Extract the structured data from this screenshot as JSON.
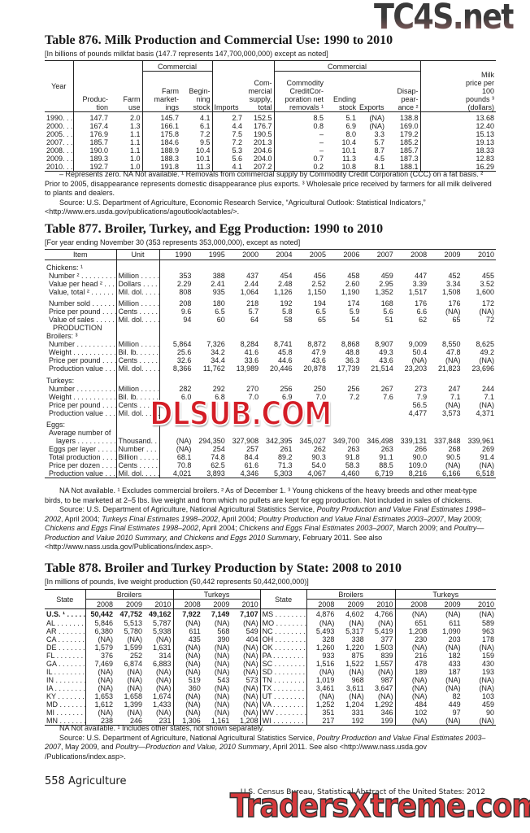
{
  "t876": {
    "title": "Table 876. Milk Production and Commercial Use: 1990 to 2010",
    "subtitle": "[In billions of pounds milkfat basis (147.7 represents 147,700,000,000) except as noted]",
    "headers": {
      "commercial1": "Commercial",
      "commercial2": "Commercial",
      "year": "Year",
      "production": "Produc-\ntion",
      "farm_use": "Farm\nuse",
      "farm_marketings": "Farm\nmarket-\nings",
      "beginning_stock": "Begin-\nning\nstock",
      "imports": "Imports",
      "supply": "Com-\nmercial\nsupply,\ntotal",
      "ccc": "Commodity\nCreditCor-\nporation net\nremovals ¹",
      "ending_stock": "Ending\nstock",
      "exports": "Exports",
      "disappearance": "Disap-\npear-\nance ²",
      "milk_price": "Milk\nprice per\n100\npounds ³\n(dollars)"
    },
    "rows": [
      [
        "1990. . .",
        "147.7",
        "2.0",
        "145.7",
        "4.1",
        "2.7",
        "152.5",
        "8.5",
        "5.1",
        "(NA)",
        "138.8",
        "13.68"
      ],
      [
        "2000. . .",
        "167.4",
        "1.3",
        "166.1",
        "6.1",
        "4.4",
        "176.7",
        "0.8",
        "6.9",
        "(NA)",
        "169.0",
        "12.40"
      ],
      [
        "2005. . .",
        "176.9",
        "1.1",
        "175.8",
        "7.2",
        "7.5",
        "190.5",
        "–",
        "8.0",
        "3.3",
        "179.2",
        "15.13"
      ],
      [
        "2007. . .",
        "185.7",
        "1.1",
        "184.6",
        "9.5",
        "7.2",
        "201.3",
        "–",
        "10.4",
        "5.7",
        "185.2",
        "19.13"
      ],
      [
        "2008. . .",
        "190.0",
        "1.1",
        "188.9",
        "10.4",
        "5.3",
        "204.6",
        "–",
        "10.1",
        "8.7",
        "185.7",
        "18.33"
      ],
      [
        "2009. . .",
        "189.3",
        "1.0",
        "188.3",
        "10.1",
        "5.6",
        "204.0",
        "0.7",
        "11.3",
        "4.5",
        "187.3",
        "12.83"
      ],
      [
        "2010. . .",
        "192.7",
        "1.0",
        "191.8",
        "11.3",
        "4.1",
        "207.2",
        "0.2",
        "10.8",
        "8.1",
        "188.1",
        "16.29"
      ]
    ],
    "notes": [
      [
        {
          "t": "– Represents zero. NA Not available. ¹ Removals from commercial supply by Commodity Credit Corporation (CCC) on a fat basis. ² Prior to 2005, disappearance represents domestic disappearance plus exports. ³ Wholesale price received by farmers for all milk delivered to plants and dealers."
        }
      ],
      [
        {
          "t": "Source: U.S. Department of Agriculture, Economic Research Service, “Agricultural Outlook: Statistical Indicators,” <http://www.ers.usda.gov/publications/agoutlook/aotables/>."
        }
      ]
    ]
  },
  "t877": {
    "title": "Table 877. Broiler, Turkey, and Egg Production: 1990 to 2010",
    "subtitle": "[For year ending November 30 (353 represents 353,000,000), except as noted]",
    "headers": {
      "item": "Item",
      "unit": "Unit",
      "years": [
        "1990",
        "1995",
        "2000",
        "2004",
        "2005",
        "2006",
        "2007",
        "2008",
        "2009",
        "2010"
      ]
    },
    "rows": [
      {
        "item": "Chickens: ¹",
        "kind": "head"
      },
      {
        "item": "Number ²",
        "unit": "Million",
        "v": [
          "353",
          "388",
          "437",
          "454",
          "456",
          "458",
          "459",
          "447",
          "452",
          "455"
        ]
      },
      {
        "item": "Value per head ²",
        "unit": "Dollars",
        "v": [
          "2.29",
          "2.41",
          "2.44",
          "2.48",
          "2.52",
          "2.60",
          "2.95",
          "3.39",
          "3.34",
          "3.52"
        ]
      },
      {
        "item": "Value, total ²",
        "unit": "Mil. dol.",
        "v": [
          "808",
          "935",
          "1,064",
          "1,126",
          "1,150",
          "1,190",
          "1,352",
          "1,517",
          "1,508",
          "1,600"
        ]
      },
      {
        "item": "Number sold",
        "unit": "Million",
        "gap": true,
        "v": [
          "208",
          "180",
          "218",
          "192",
          "194",
          "174",
          "168",
          "176",
          "176",
          "172"
        ]
      },
      {
        "item": "Price per pound",
        "unit": "Cents",
        "v": [
          "9.6",
          "6.5",
          "5.7",
          "5.8",
          "6.5",
          "5.9",
          "5.6",
          "6.6",
          "(NA)",
          "(NA)"
        ]
      },
      {
        "item": "Value of sales",
        "unit": "Mil. dol.",
        "v": [
          "94",
          "60",
          "64",
          "58",
          "65",
          "54",
          "51",
          "62",
          "65",
          "72"
        ]
      },
      {
        "item": "PRODUCTION",
        "kind": "sec"
      },
      {
        "item": "Broilers: ³",
        "kind": "head"
      },
      {
        "item": "Number",
        "unit": "Million",
        "v": [
          "5,864",
          "7,326",
          "8,284",
          "8,741",
          "8,872",
          "8,868",
          "8,907",
          "9,009",
          "8,550",
          "8,625"
        ]
      },
      {
        "item": "Weight",
        "unit": "Bil. lb.",
        "v": [
          "25.6",
          "34.2",
          "41.6",
          "45.8",
          "47.9",
          "48.8",
          "49.3",
          "50.4",
          "47.8",
          "49.2"
        ]
      },
      {
        "item": "Price per pound",
        "unit": "Cents",
        "v": [
          "32.6",
          "34.4",
          "33.6",
          "44.6",
          "43.6",
          "36.3",
          "43.6",
          "(NA)",
          "(NA)",
          "(NA)"
        ]
      },
      {
        "item": "Production value",
        "unit": "Mil. dol.",
        "v": [
          "8,366",
          "11,762",
          "13,989",
          "20,446",
          "20,878",
          "17,739",
          "21,514",
          "23,203",
          "21,823",
          "23,696"
        ]
      },
      {
        "item": "Turkeys:",
        "kind": "head",
        "gap": true
      },
      {
        "item": "Number",
        "unit": "Million",
        "v": [
          "282",
          "292",
          "270",
          "256",
          "250",
          "256",
          "267",
          "273",
          "247",
          "244"
        ]
      },
      {
        "item": "Weight",
        "unit": "Bil. lb.",
        "v": [
          "6.0",
          "6.8",
          "7.0",
          "6.9",
          "7.0",
          "7.2",
          "7.6",
          "7.9",
          "7.1",
          "7.1"
        ]
      },
      {
        "item": "Price per pound",
        "unit": "Cents",
        "v": [
          "",
          "",
          "",
          "",
          "",
          "",
          "",
          "56.5",
          "(NA)",
          "(NA)"
        ]
      },
      {
        "item": "Production value",
        "unit": "Mil. dol.",
        "v": [
          "",
          "",
          "",
          "",
          "",
          "",
          "",
          "4,477",
          "3,573",
          "4,371"
        ]
      },
      {
        "item": "Eggs:",
        "kind": "head",
        "gap": true
      },
      {
        "item": "Average number of",
        "kind": "head2"
      },
      {
        "item": "layers",
        "unit": "Thousand.",
        "indent": true,
        "v": [
          "(NA)",
          "294,350",
          "327,908",
          "342,395",
          "345,027",
          "349,700",
          "346,498",
          "339,131",
          "337,848",
          "339,961"
        ]
      },
      {
        "item": "Eggs per layer",
        "unit": "Number",
        "v": [
          "(NA)",
          "254",
          "257",
          "261",
          "262",
          "263",
          "263",
          "266",
          "268",
          "269"
        ]
      },
      {
        "item": "Total production",
        "unit": "Billion",
        "v": [
          "68.1",
          "74.8",
          "84.4",
          "89.2",
          "90.3",
          "91.8",
          "91.1",
          "90.0",
          "90.5",
          "91.4"
        ]
      },
      {
        "item": "Price per dozen",
        "unit": "Cents",
        "v": [
          "70.8",
          "62.5",
          "61.6",
          "71.3",
          "54.0",
          "58.3",
          "88.5",
          "109.0",
          "(NA)",
          "(NA)"
        ]
      },
      {
        "item": "Production value",
        "unit": "Mil. dol.",
        "v": [
          "4,021",
          "3,893",
          "4,346",
          "5,303",
          "4,067",
          "4,460",
          "6,719",
          "8,216",
          "6,166",
          "6,518"
        ]
      }
    ],
    "notes": [
      [
        {
          "t": "NA Not available. ¹ Excludes commercial broilers. ² As of December 1. ³ Young chickens of the heavy breeds and other meat-type birds, to be marketed at 2–5 lbs. live weight and from which no pullets are kept for egg production. Not included in sales of chickens."
        }
      ],
      [
        {
          "t": "Source: U.S. Department of Agriculture, National Agricultural Statistics Service, "
        },
        {
          "t": "Poultry Production and Value Final Estimates 1998–2002",
          "i": true
        },
        {
          "t": ", April 2004; "
        },
        {
          "t": "Turkeys Final Estimates 1998–2002",
          "i": true
        },
        {
          "t": ", April 2004; "
        },
        {
          "t": "Poultry Production and Value Final Estimates 2003–2007",
          "i": true
        },
        {
          "t": ", May 2009; "
        },
        {
          "t": "Chickens and Eggs Final Estimates 1998–2002",
          "i": true
        },
        {
          "t": ", April 2004; "
        },
        {
          "t": "Chickens and Eggs Final Estimates 2003–2007",
          "i": true
        },
        {
          "t": ", March 2009; and "
        },
        {
          "t": "Poultry—Production and Value 2010 Summary, and Chickens and Eggs 2010 Summary",
          "i": true
        },
        {
          "t": ", February 2011. See also <http://www.nass.usda.gov/Publications/index.asp>."
        }
      ]
    ]
  },
  "t878": {
    "title": "Table 878. Broiler and Turkey Production by State: 2008 to 2010",
    "subtitle": "[In millions of pounds, live weight production (50,442 represents 50,442,000,000)]",
    "headers": {
      "state": "State",
      "broilers": "Broilers",
      "turkeys": "Turkeys",
      "years": [
        "2008",
        "2009",
        "2010"
      ]
    },
    "left": [
      [
        "U.S. ¹",
        "50,442",
        "47,752",
        "49,162",
        "7,922",
        "7,149",
        "7,107"
      ],
      [
        "AL",
        "5,846",
        "5,513",
        "5,787",
        "(NA)",
        "(NA)",
        "(NA)"
      ],
      [
        "AR",
        "6,380",
        "5,780",
        "5,938",
        "611",
        "568",
        "549"
      ],
      [
        "CA",
        "(NA)",
        "(NA)",
        "(NA)",
        "435",
        "390",
        "404"
      ],
      [
        "DE",
        "1,579",
        "1,599",
        "1,631",
        "(NA)",
        "(NA)",
        "(NA)"
      ],
      [
        "FL",
        "376",
        "252",
        "314",
        "(NA)",
        "(NA)",
        "(NA)"
      ],
      [
        "GA",
        "7,469",
        "6,874",
        "6,883",
        "(NA)",
        "(NA)",
        "(NA)"
      ],
      [
        "IL",
        "(NA)",
        "(NA)",
        "(NA)",
        "(NA)",
        "(NA)",
        "(NA)"
      ],
      [
        "IN",
        "(NA)",
        "(NA)",
        "(NA)",
        "519",
        "543",
        "573"
      ],
      [
        "IA",
        "(NA)",
        "(NA)",
        "(NA)",
        "360",
        "(NA)",
        "(NA)"
      ],
      [
        "KY",
        "1,653",
        "1,658",
        "1,674",
        "(NA)",
        "(NA)",
        "(NA)"
      ],
      [
        "MD",
        "1,612",
        "1,399",
        "1,433",
        "(NA)",
        "(NA)",
        "(NA)"
      ],
      [
        "MI",
        "(NA)",
        "(NA)",
        "(NA)",
        "(NA)",
        "(NA)",
        "(NA)"
      ],
      [
        "MN",
        "238",
        "246",
        "231",
        "1,306",
        "1,161",
        "1,208"
      ]
    ],
    "right": [
      [
        "MS",
        "4,876",
        "4,602",
        "4,766",
        "(NA)",
        "(NA)",
        "(NA)"
      ],
      [
        "MO",
        "(NA)",
        "(NA)",
        "(NA)",
        "651",
        "611",
        "589"
      ],
      [
        "NC",
        "5,493",
        "5,317",
        "5,419",
        "1,208",
        "1,090",
        "963"
      ],
      [
        "OH",
        "328",
        "338",
        "377",
        "230",
        "203",
        "178"
      ],
      [
        "OK",
        "1,260",
        "1,220",
        "1,503",
        "(NA)",
        "(NA)",
        "(NA)"
      ],
      [
        "PA",
        "933",
        "875",
        "839",
        "216",
        "182",
        "159"
      ],
      [
        "SC",
        "1,516",
        "1,522",
        "1,557",
        "478",
        "433",
        "430"
      ],
      [
        "SD",
        "(NA)",
        "(NA)",
        "(NA)",
        "189",
        "187",
        "193"
      ],
      [
        "TN",
        "1,019",
        "968",
        "987",
        "(NA)",
        "(NA)",
        "(NA)"
      ],
      [
        "TX",
        "3,461",
        "3,611",
        "3,647",
        "(NA)",
        "(NA)",
        "(NA)"
      ],
      [
        "UT",
        "(NA)",
        "(NA)",
        "(NA)",
        "(NA)",
        "82",
        "103"
      ],
      [
        "VA",
        "1,252",
        "1,204",
        "1,292",
        "484",
        "449",
        "459"
      ],
      [
        "WV",
        "351",
        "331",
        "346",
        "102",
        "97",
        "90"
      ],
      [
        "WI",
        "217",
        "192",
        "199",
        "(NA)",
        "(NA)",
        "(NA)"
      ]
    ],
    "notes": [
      [
        {
          "t": "NA Not available. ¹ Includes other states, not shown separately."
        }
      ],
      [
        {
          "t": "Source: U.S. Department of Agriculture, National Agricultural Statistics Service, "
        },
        {
          "t": "Poultry Production and Value Final Estimates 2003–2007",
          "i": true
        },
        {
          "t": ", May 2009, and "
        },
        {
          "t": "Poultry—Production and Value, 2010 Summary",
          "i": true
        },
        {
          "t": ", April 2011. See also <http://www.nass.usda.gov /Publications/index.asp>."
        }
      ]
    ]
  },
  "footer": {
    "page": "558  Agriculture",
    "source": "U.S. Census Bureau, Statistical Abstract of the United States: 2012"
  },
  "watermarks": {
    "top": "TC4S.net",
    "middle": "DLSUB.COM",
    "bottom": "TradersXtreme.com"
  }
}
